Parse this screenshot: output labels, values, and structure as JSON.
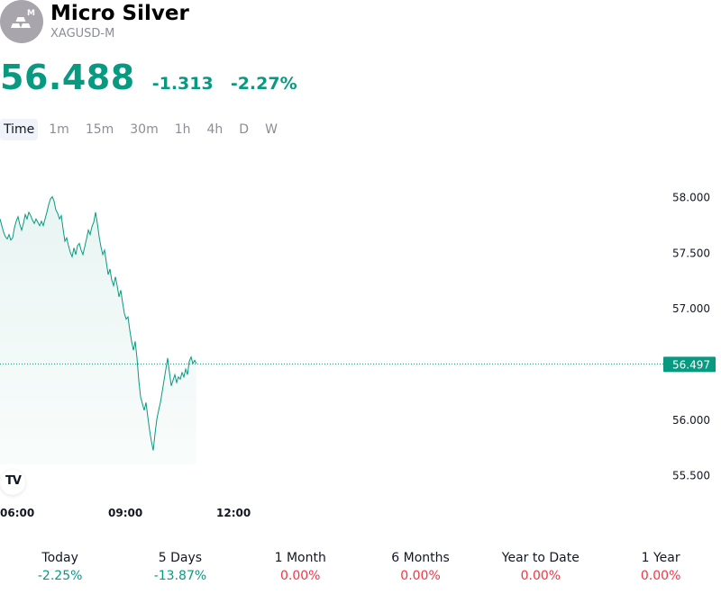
{
  "symbol": {
    "name": "Micro Silver",
    "ticker": "XAGUSD-M",
    "logo_badge": "M",
    "logo_icon": "silver-bars-icon"
  },
  "quote": {
    "price": "56.488",
    "change": "-1.313",
    "change_pct": "-2.27%",
    "color": "#089981"
  },
  "timeframes": [
    {
      "label": "Time",
      "active": true
    },
    {
      "label": "1m",
      "active": false
    },
    {
      "label": "15m",
      "active": false
    },
    {
      "label": "30m",
      "active": false
    },
    {
      "label": "1h",
      "active": false
    },
    {
      "label": "4h",
      "active": false
    },
    {
      "label": "D",
      "active": false
    },
    {
      "label": "W",
      "active": false
    }
  ],
  "chart_data": {
    "type": "area",
    "title": "",
    "x_ticks": [
      {
        "label": "06:00",
        "t": 6.0
      },
      {
        "label": "09:00",
        "t": 9.0
      },
      {
        "label": "12:00",
        "t": 12.0
      }
    ],
    "y_ticks": [
      "58.000",
      "57.500",
      "57.000",
      "56.000",
      "55.500"
    ],
    "ylim": [
      55.4,
      58.15
    ],
    "xlim": [
      6.0,
      25.8
    ],
    "last_value": "56.497",
    "line_color": "#089981",
    "fill_color": "#e6f4f1",
    "grid": false,
    "series": [
      {
        "points": [
          [
            6.0,
            57.8
          ],
          [
            6.05,
            57.74
          ],
          [
            6.1,
            57.68
          ],
          [
            6.15,
            57.64
          ],
          [
            6.2,
            57.62
          ],
          [
            6.25,
            57.66
          ],
          [
            6.3,
            57.61
          ],
          [
            6.35,
            57.63
          ],
          [
            6.4,
            57.72
          ],
          [
            6.45,
            57.78
          ],
          [
            6.5,
            57.82
          ],
          [
            6.55,
            57.75
          ],
          [
            6.6,
            57.7
          ],
          [
            6.65,
            57.76
          ],
          [
            6.7,
            57.84
          ],
          [
            6.75,
            57.8
          ],
          [
            6.8,
            57.86
          ],
          [
            6.85,
            57.83
          ],
          [
            6.9,
            57.79
          ],
          [
            6.95,
            57.76
          ],
          [
            7.0,
            57.8
          ],
          [
            7.05,
            57.77
          ],
          [
            7.1,
            57.74
          ],
          [
            7.15,
            57.78
          ],
          [
            7.2,
            57.74
          ],
          [
            7.25,
            57.8
          ],
          [
            7.3,
            57.86
          ],
          [
            7.35,
            57.93
          ],
          [
            7.4,
            57.98
          ],
          [
            7.45,
            58.0
          ],
          [
            7.5,
            57.96
          ],
          [
            7.55,
            57.88
          ],
          [
            7.6,
            57.85
          ],
          [
            7.65,
            57.8
          ],
          [
            7.7,
            57.83
          ],
          [
            7.75,
            57.71
          ],
          [
            7.8,
            57.6
          ],
          [
            7.85,
            57.63
          ],
          [
            7.9,
            57.56
          ],
          [
            7.95,
            57.5
          ],
          [
            8.0,
            57.46
          ],
          [
            8.05,
            57.54
          ],
          [
            8.1,
            57.48
          ],
          [
            8.15,
            57.56
          ],
          [
            8.2,
            57.58
          ],
          [
            8.25,
            57.52
          ],
          [
            8.3,
            57.48
          ],
          [
            8.35,
            57.55
          ],
          [
            8.4,
            57.62
          ],
          [
            8.45,
            57.7
          ],
          [
            8.5,
            57.66
          ],
          [
            8.55,
            57.73
          ],
          [
            8.6,
            57.77
          ],
          [
            8.65,
            57.86
          ],
          [
            8.7,
            57.76
          ],
          [
            8.75,
            57.64
          ],
          [
            8.8,
            57.55
          ],
          [
            8.85,
            57.48
          ],
          [
            8.9,
            57.52
          ],
          [
            8.95,
            57.41
          ],
          [
            9.0,
            57.3
          ],
          [
            9.05,
            57.35
          ],
          [
            9.1,
            57.25
          ],
          [
            9.15,
            57.2
          ],
          [
            9.2,
            57.28
          ],
          [
            9.25,
            57.2
          ],
          [
            9.3,
            57.1
          ],
          [
            9.35,
            57.16
          ],
          [
            9.4,
            57.05
          ],
          [
            9.45,
            56.95
          ],
          [
            9.5,
            56.9
          ],
          [
            9.55,
            56.92
          ],
          [
            9.6,
            56.8
          ],
          [
            9.65,
            56.7
          ],
          [
            9.7,
            56.62
          ],
          [
            9.75,
            56.7
          ],
          [
            9.8,
            56.55
          ],
          [
            9.85,
            56.35
          ],
          [
            9.9,
            56.2
          ],
          [
            9.95,
            56.14
          ],
          [
            10.0,
            56.08
          ],
          [
            10.05,
            56.15
          ],
          [
            10.1,
            56.02
          ],
          [
            10.15,
            55.9
          ],
          [
            10.2,
            55.8
          ],
          [
            10.25,
            55.72
          ],
          [
            10.3,
            55.87
          ],
          [
            10.35,
            56.0
          ],
          [
            10.4,
            56.08
          ],
          [
            10.45,
            56.15
          ],
          [
            10.5,
            56.25
          ],
          [
            10.55,
            56.35
          ],
          [
            10.6,
            56.45
          ],
          [
            10.65,
            56.55
          ],
          [
            10.7,
            56.42
          ],
          [
            10.75,
            56.3
          ],
          [
            10.8,
            56.35
          ],
          [
            10.85,
            56.4
          ],
          [
            10.9,
            56.33
          ],
          [
            10.95,
            56.38
          ],
          [
            11.0,
            56.36
          ],
          [
            11.05,
            56.42
          ],
          [
            11.1,
            56.38
          ],
          [
            11.15,
            56.45
          ],
          [
            11.2,
            56.4
          ],
          [
            11.25,
            56.52
          ],
          [
            11.3,
            56.56
          ],
          [
            11.35,
            56.5
          ],
          [
            11.4,
            56.53
          ],
          [
            11.45,
            56.5
          ]
        ]
      }
    ]
  },
  "performance": [
    {
      "label": "Today",
      "value": "-2.25%",
      "color": "#089981"
    },
    {
      "label": "5 Days",
      "value": "-13.87%",
      "color": "#089981"
    },
    {
      "label": "1 Month",
      "value": "0.00%",
      "color": "#f23645"
    },
    {
      "label": "6 Months",
      "value": "0.00%",
      "color": "#f23645"
    },
    {
      "label": "Year to Date",
      "value": "0.00%",
      "color": "#f23645"
    },
    {
      "label": "1 Year",
      "value": "0.00%",
      "color": "#f23645"
    }
  ]
}
